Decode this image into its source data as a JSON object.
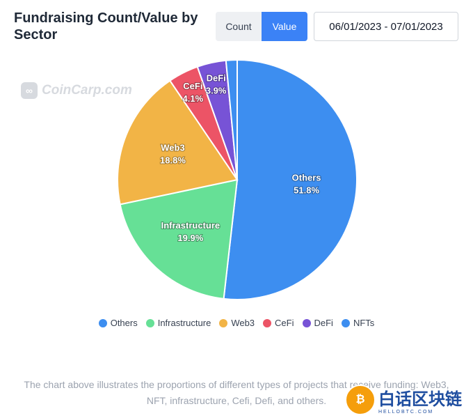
{
  "header": {
    "title": "Fundraising Count/Value by Sector",
    "toggle": {
      "count_label": "Count",
      "value_label": "Value",
      "selected": "Value"
    },
    "date_range": "06/01/2023 - 07/01/2023"
  },
  "watermark": {
    "text": "CoinCarp.com",
    "icon": "coincarp-logo-icon"
  },
  "chart_data": {
    "type": "pie",
    "series": [
      {
        "name": "Others",
        "value": 51.8,
        "label": "51.8%",
        "color": "#3d8ef0"
      },
      {
        "name": "Infrastructure",
        "value": 19.9,
        "label": "19.9%",
        "color": "#66e096"
      },
      {
        "name": "Web3",
        "value": 18.8,
        "label": "18.8%",
        "color": "#f2b446"
      },
      {
        "name": "CeFi",
        "value": 4.1,
        "label": "4.1%",
        "color": "#ec5466"
      },
      {
        "name": "DeFi",
        "value": 3.9,
        "label": "3.9%",
        "color": "#7753d6"
      },
      {
        "name": "NFTs",
        "value": 1.5,
        "label": "",
        "color": "#3d8ef0"
      }
    ],
    "legend_position": "bottom"
  },
  "caption": "The chart above illustrates the proportions of different types of projects that receive funding: Web3, NFT, infrastructure, Cefi, Defi, and others.",
  "corner_logo": {
    "text": "白话区块链",
    "subtext": "HELLOBTC.COM"
  }
}
